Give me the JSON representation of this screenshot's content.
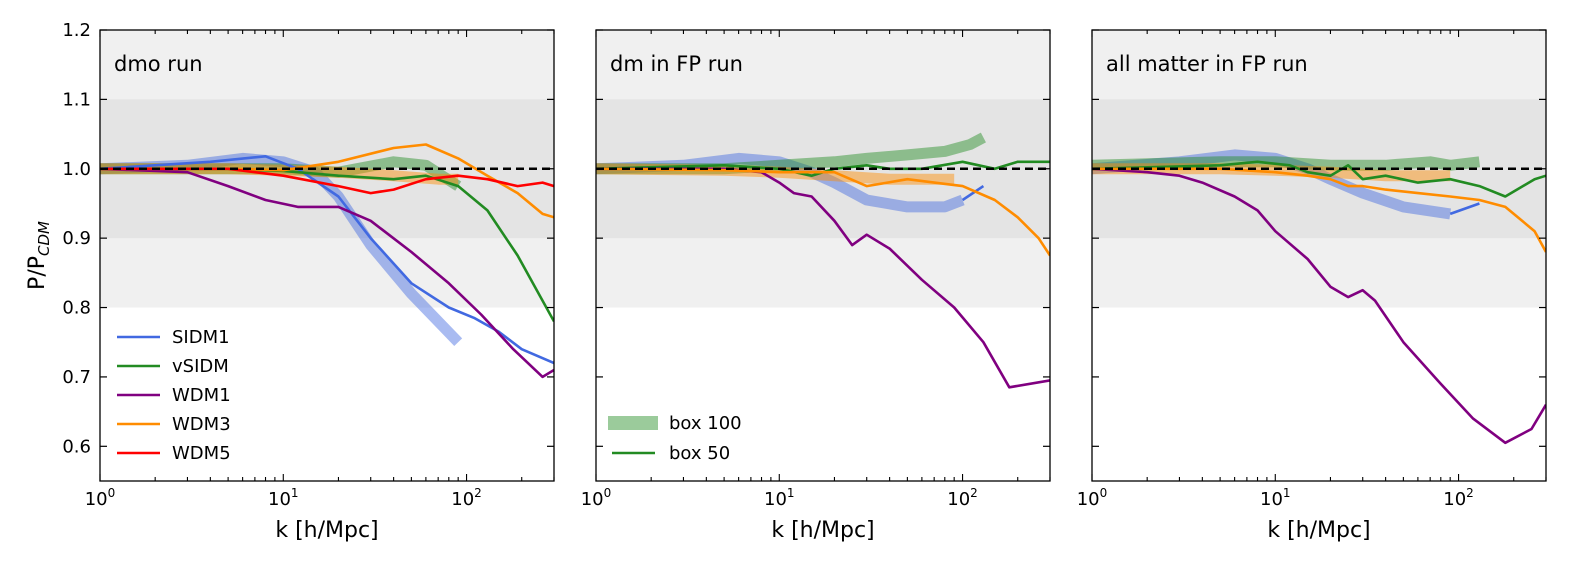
{
  "colors": {
    "SIDM1": "#4169e1",
    "vSIDM": "#228b22",
    "WDM1": "#800080",
    "WDM3": "#ff8c00",
    "WDM5": "#ff0000",
    "band_outer": "#f0f0f0",
    "band_inner": "#e4e4e4",
    "reference": "#000000"
  },
  "chart_data": [
    {
      "type": "line",
      "title": "dmo run",
      "xlabel": "k [h/Mpc]",
      "ylabel": "P/P_CDM",
      "xscale": "log",
      "xlim": [
        1,
        300
      ],
      "ylim": [
        0.55,
        1.2
      ],
      "xticks": [
        {
          "v": 1,
          "m": "10",
          "e": "0"
        },
        {
          "v": 10,
          "m": "10",
          "e": "1"
        },
        {
          "v": 100,
          "m": "10",
          "e": "2"
        }
      ],
      "yticks": [
        "0.6",
        "0.7",
        "0.8",
        "0.9",
        "1.0",
        "1.1",
        "1.2"
      ],
      "bands": [
        {
          "from": 0.8,
          "to": 1.2,
          "tone": "outer"
        },
        {
          "from": 0.9,
          "to": 1.1,
          "tone": "inner"
        }
      ],
      "reference_line": 1.0,
      "legend": {
        "position": "bottom-left",
        "entries": [
          "SIDM1",
          "vSIDM",
          "WDM1",
          "WDM3",
          "WDM5"
        ]
      },
      "series": [
        {
          "name": "SIDM1",
          "box": "box 100",
          "x": [
            1,
            3,
            6,
            10,
            15,
            20,
            30,
            50,
            90
          ],
          "y": [
            1.0,
            1.005,
            1.015,
            1.01,
            0.995,
            0.96,
            0.89,
            0.82,
            0.75
          ]
        },
        {
          "name": "SIDM1",
          "box": "box 50",
          "x": [
            1,
            4,
            8,
            12,
            20,
            30,
            50,
            80,
            110,
            150,
            200,
            300
          ],
          "y": [
            1.0,
            1.01,
            1.018,
            1.0,
            0.96,
            0.9,
            0.835,
            0.8,
            0.785,
            0.765,
            0.74,
            0.72
          ]
        },
        {
          "name": "vSIDM",
          "box": "box 100",
          "x": [
            1,
            5,
            10,
            20,
            40,
            60,
            90
          ],
          "y": [
            1.0,
            1.0,
            1.0,
            0.995,
            1.01,
            1.005,
            0.975
          ]
        },
        {
          "name": "vSIDM",
          "box": "box 50",
          "x": [
            1,
            5,
            10,
            20,
            40,
            60,
            90,
            130,
            190,
            300
          ],
          "y": [
            1.0,
            1.0,
            0.997,
            0.99,
            0.985,
            0.99,
            0.975,
            0.94,
            0.875,
            0.78
          ]
        },
        {
          "name": "WDM1",
          "box": "box 50",
          "x": [
            1,
            3,
            5,
            8,
            12,
            20,
            30,
            50,
            80,
            120,
            180,
            260,
            300
          ],
          "y": [
            1.0,
            0.995,
            0.975,
            0.955,
            0.945,
            0.945,
            0.925,
            0.88,
            0.835,
            0.79,
            0.74,
            0.7,
            0.71
          ]
        },
        {
          "name": "WDM3",
          "box": "box 100",
          "x": [
            1,
            5,
            10,
            20,
            40,
            70,
            90
          ],
          "y": [
            1.0,
            1.0,
            0.998,
            0.995,
            0.99,
            0.985,
            0.985
          ]
        },
        {
          "name": "WDM3",
          "box": "box 50",
          "x": [
            1,
            5,
            10,
            20,
            40,
            60,
            90,
            130,
            190,
            260,
            300
          ],
          "y": [
            1.0,
            1.0,
            0.998,
            1.01,
            1.03,
            1.035,
            1.015,
            0.99,
            0.965,
            0.935,
            0.93
          ]
        },
        {
          "name": "WDM5",
          "box": "box 50",
          "x": [
            1,
            5,
            10,
            20,
            30,
            40,
            60,
            90,
            130,
            190,
            260,
            300
          ],
          "y": [
            1.0,
            1.0,
            0.99,
            0.975,
            0.965,
            0.97,
            0.985,
            0.99,
            0.985,
            0.975,
            0.98,
            0.975
          ]
        }
      ]
    },
    {
      "type": "line",
      "title": "dm in FP run",
      "xlabel": "k [h/Mpc]",
      "ylabel": "",
      "xscale": "log",
      "xlim": [
        1,
        300
      ],
      "ylim": [
        0.55,
        1.2
      ],
      "xticks": [
        {
          "v": 1,
          "m": "10",
          "e": "0"
        },
        {
          "v": 10,
          "m": "10",
          "e": "1"
        },
        {
          "v": 100,
          "m": "10",
          "e": "2"
        }
      ],
      "yticks": [
        "0.6",
        "0.7",
        "0.8",
        "0.9",
        "1.0",
        "1.1",
        "1.2"
      ],
      "bands": [
        {
          "from": 0.8,
          "to": 1.2,
          "tone": "outer"
        },
        {
          "from": 0.9,
          "to": 1.1,
          "tone": "inner"
        }
      ],
      "reference_line": 1.0,
      "legend": {
        "position": "bottom-left",
        "entries": [
          "box 100",
          "box 50"
        ]
      },
      "series": [
        {
          "name": "SIDM1",
          "box": "box 100",
          "x": [
            1,
            3,
            6,
            10,
            15,
            20,
            30,
            50,
            80,
            100
          ],
          "y": [
            1.0,
            1.005,
            1.015,
            1.01,
            0.995,
            0.98,
            0.955,
            0.945,
            0.945,
            0.955
          ]
        },
        {
          "name": "SIDM1",
          "box": "box 50",
          "x": [
            100,
            130
          ],
          "y": [
            0.955,
            0.975
          ]
        },
        {
          "name": "vSIDM",
          "box": "box 100",
          "x": [
            1,
            5,
            10,
            20,
            30,
            50,
            80,
            110,
            130
          ],
          "y": [
            1.0,
            1.0,
            1.005,
            1.01,
            1.015,
            1.02,
            1.025,
            1.035,
            1.045
          ]
        },
        {
          "name": "vSIDM",
          "box": "box 50",
          "x": [
            1,
            5,
            10,
            15,
            20,
            30,
            40,
            60,
            100,
            150,
            200,
            300
          ],
          "y": [
            1.0,
            1.005,
            1.0,
            0.99,
            1.0,
            1.005,
            1.0,
            1.0,
            1.01,
            1.0,
            1.01,
            1.01
          ]
        },
        {
          "name": "WDM1",
          "box": "box 50",
          "x": [
            1,
            3,
            5,
            8,
            10,
            12,
            15,
            20,
            25,
            30,
            40,
            60,
            90,
            130,
            180,
            300
          ],
          "y": [
            1.0,
            1.0,
            1.0,
            0.995,
            0.98,
            0.965,
            0.96,
            0.925,
            0.89,
            0.905,
            0.885,
            0.84,
            0.8,
            0.75,
            0.685,
            0.695
          ]
        },
        {
          "name": "WDM3",
          "box": "box 100",
          "x": [
            1,
            5,
            10,
            20,
            40,
            70,
            90
          ],
          "y": [
            1.0,
            0.998,
            0.995,
            0.99,
            0.985,
            0.985,
            0.985
          ]
        },
        {
          "name": "WDM3",
          "box": "box 50",
          "x": [
            1,
            5,
            10,
            20,
            30,
            50,
            70,
            100,
            150,
            200,
            260,
            300
          ],
          "y": [
            1.0,
            0.998,
            0.995,
            0.995,
            0.975,
            0.985,
            0.98,
            0.975,
            0.955,
            0.93,
            0.9,
            0.875
          ]
        }
      ]
    },
    {
      "type": "line",
      "title": "all matter in FP run",
      "xlabel": "k [h/Mpc]",
      "ylabel": "",
      "xscale": "log",
      "xlim": [
        1,
        300
      ],
      "ylim": [
        0.55,
        1.2
      ],
      "xticks": [
        {
          "v": 1,
          "m": "10",
          "e": "0"
        },
        {
          "v": 10,
          "m": "10",
          "e": "1"
        },
        {
          "v": 100,
          "m": "10",
          "e": "2"
        }
      ],
      "yticks": [
        "0.6",
        "0.7",
        "0.8",
        "0.9",
        "1.0",
        "1.1",
        "1.2"
      ],
      "bands": [
        {
          "from": 0.8,
          "to": 1.2,
          "tone": "outer"
        },
        {
          "from": 0.9,
          "to": 1.1,
          "tone": "inner"
        }
      ],
      "reference_line": 1.0,
      "legend": null,
      "series": [
        {
          "name": "SIDM1",
          "box": "box 100",
          "x": [
            1,
            3,
            6,
            10,
            15,
            20,
            30,
            50,
            90
          ],
          "y": [
            1.0,
            1.01,
            1.02,
            1.015,
            1.0,
            0.985,
            0.965,
            0.945,
            0.935
          ]
        },
        {
          "name": "SIDM1",
          "box": "box 50",
          "x": [
            90,
            130
          ],
          "y": [
            0.935,
            0.95
          ]
        },
        {
          "name": "vSIDM",
          "box": "box 100",
          "x": [
            1,
            5,
            10,
            20,
            40,
            70,
            90,
            130
          ],
          "y": [
            1.005,
            1.01,
            1.01,
            1.005,
            1.005,
            1.01,
            1.005,
            1.01
          ]
        },
        {
          "name": "vSIDM",
          "box": "box 50",
          "x": [
            1,
            5,
            8,
            12,
            15,
            20,
            25,
            30,
            40,
            60,
            90,
            130,
            180,
            260,
            300
          ],
          "y": [
            1.0,
            1.005,
            1.01,
            1.005,
            0.995,
            0.99,
            1.005,
            0.985,
            0.99,
            0.98,
            0.985,
            0.975,
            0.96,
            0.985,
            0.99
          ]
        },
        {
          "name": "WDM1",
          "box": "box 50",
          "x": [
            1,
            2,
            3,
            4,
            6,
            8,
            10,
            15,
            20,
            25,
            30,
            35,
            50,
            80,
            120,
            180,
            250,
            300
          ],
          "y": [
            1.0,
            0.995,
            0.99,
            0.98,
            0.96,
            0.94,
            0.91,
            0.87,
            0.83,
            0.815,
            0.825,
            0.81,
            0.75,
            0.69,
            0.64,
            0.605,
            0.625,
            0.66
          ]
        },
        {
          "name": "WDM3",
          "box": "box 100",
          "x": [
            1,
            5,
            10,
            20,
            40,
            70,
            90
          ],
          "y": [
            1.0,
            1.0,
            0.998,
            0.995,
            0.99,
            0.99,
            0.99
          ]
        },
        {
          "name": "WDM3",
          "box": "box 50",
          "x": [
            1,
            5,
            10,
            15,
            20,
            25,
            30,
            40,
            60,
            90,
            130,
            180,
            260,
            300
          ],
          "y": [
            1.0,
            1.0,
            0.995,
            0.99,
            0.985,
            0.975,
            0.975,
            0.97,
            0.965,
            0.96,
            0.955,
            0.945,
            0.91,
            0.88
          ]
        }
      ]
    }
  ]
}
